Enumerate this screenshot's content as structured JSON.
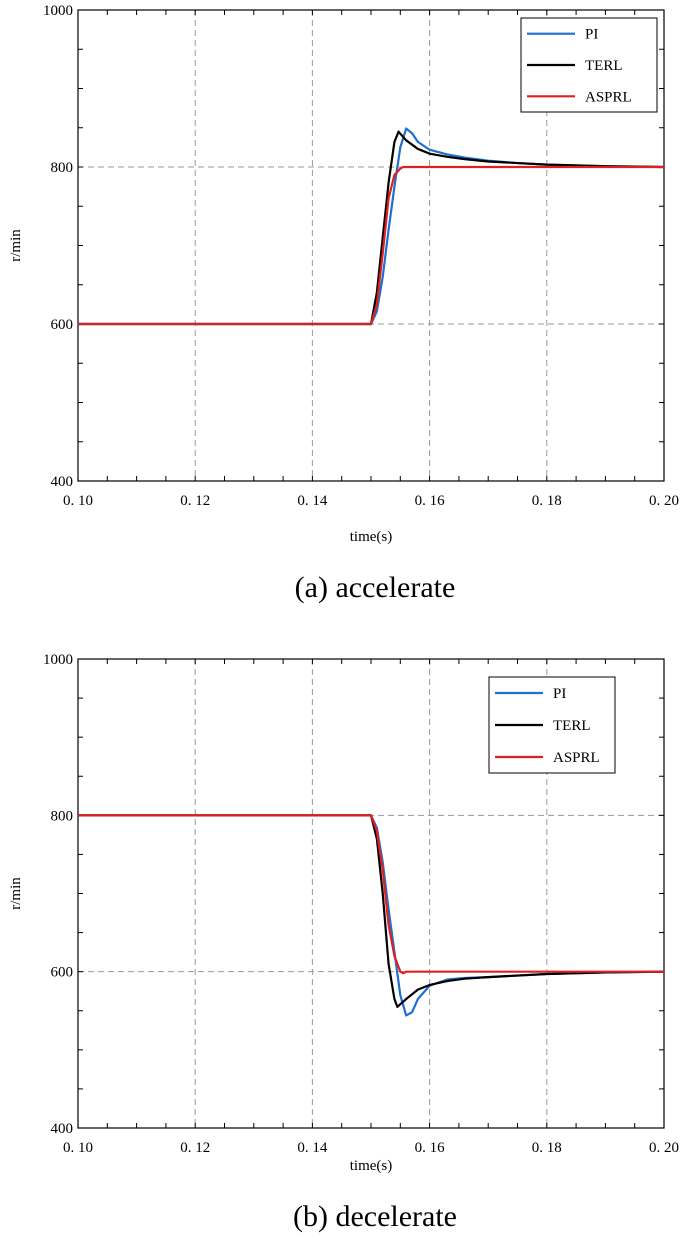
{
  "chart_data": [
    {
      "type": "line",
      "caption": "(a) accelerate",
      "xlabel": "time(s)",
      "ylabel": "r/min",
      "xlim": [
        0.1,
        0.2
      ],
      "ylim": [
        400,
        1000
      ],
      "xticks": [
        0.1,
        0.12,
        0.14,
        0.16,
        0.18,
        0.2
      ],
      "xtick_labels": [
        "0. 10",
        "0. 12",
        "0. 14",
        "0. 16",
        "0. 18",
        "0. 20"
      ],
      "yticks": [
        400,
        600,
        800,
        1000
      ],
      "ytick_labels": [
        "400",
        "600",
        "800",
        "1000"
      ],
      "grid": true,
      "legend_position": "top-right",
      "series": [
        {
          "name": "PI",
          "color": "#1f6fd1",
          "x": [
            0.1,
            0.149,
            0.15,
            0.151,
            0.152,
            0.153,
            0.154,
            0.155,
            0.156,
            0.157,
            0.158,
            0.16,
            0.163,
            0.166,
            0.17,
            0.175,
            0.18,
            0.19,
            0.2
          ],
          "y": [
            600,
            600,
            600,
            616,
            660,
            720,
            775,
            825,
            849,
            843,
            832,
            822,
            816,
            812,
            808,
            805,
            803,
            801,
            800
          ]
        },
        {
          "name": "TERL",
          "color": "#000000",
          "x": [
            0.1,
            0.149,
            0.15,
            0.151,
            0.152,
            0.153,
            0.154,
            0.1547,
            0.156,
            0.158,
            0.16,
            0.163,
            0.166,
            0.17,
            0.175,
            0.18,
            0.19,
            0.2
          ],
          "y": [
            600,
            600,
            600,
            640,
            710,
            780,
            832,
            845,
            834,
            823,
            817,
            813,
            810,
            807,
            805,
            803,
            801,
            800
          ]
        },
        {
          "name": "ASPRL",
          "color": "#e02020",
          "x": [
            0.1,
            0.149,
            0.15,
            0.151,
            0.152,
            0.153,
            0.154,
            0.155,
            0.1555,
            0.156,
            0.17,
            0.2
          ],
          "y": [
            600,
            600,
            600,
            625,
            690,
            760,
            790,
            798,
            800,
            800,
            800,
            800
          ]
        }
      ]
    },
    {
      "type": "line",
      "caption": "(b) decelerate",
      "xlabel": "time(s)",
      "ylabel": "r/min",
      "xlim": [
        0.1,
        0.2
      ],
      "ylim": [
        400,
        1000
      ],
      "xticks": [
        0.1,
        0.12,
        0.14,
        0.16,
        0.18,
        0.2
      ],
      "xtick_labels": [
        "0. 10",
        "0. 12",
        "0. 14",
        "0. 16",
        "0. 18",
        "0. 20"
      ],
      "yticks": [
        400,
        600,
        800,
        1000
      ],
      "ytick_labels": [
        "400",
        "600",
        "800",
        "1000"
      ],
      "grid": true,
      "legend_position": "top-right",
      "series": [
        {
          "name": "PI",
          "color": "#1f6fd1",
          "x": [
            0.1,
            0.149,
            0.15,
            0.151,
            0.152,
            0.153,
            0.154,
            0.155,
            0.156,
            0.157,
            0.158,
            0.16,
            0.163,
            0.166,
            0.17,
            0.175,
            0.18,
            0.19,
            0.2
          ],
          "y": [
            800,
            800,
            800,
            784,
            740,
            680,
            625,
            570,
            544,
            548,
            565,
            582,
            590,
            592,
            593,
            595,
            597,
            599,
            600
          ]
        },
        {
          "name": "TERL",
          "color": "#000000",
          "x": [
            0.1,
            0.149,
            0.15,
            0.151,
            0.152,
            0.153,
            0.154,
            0.1545,
            0.156,
            0.158,
            0.16,
            0.163,
            0.166,
            0.17,
            0.175,
            0.18,
            0.19,
            0.2
          ],
          "y": [
            800,
            800,
            800,
            770,
            700,
            610,
            565,
            555,
            565,
            577,
            583,
            588,
            591,
            593,
            595,
            597,
            599,
            600
          ]
        },
        {
          "name": "ASPRL",
          "color": "#e02020",
          "x": [
            0.1,
            0.149,
            0.15,
            0.151,
            0.152,
            0.153,
            0.154,
            0.155,
            0.1555,
            0.156,
            0.17,
            0.2
          ],
          "y": [
            800,
            800,
            800,
            780,
            730,
            660,
            620,
            600,
            598,
            600,
            600,
            600
          ]
        }
      ]
    }
  ]
}
